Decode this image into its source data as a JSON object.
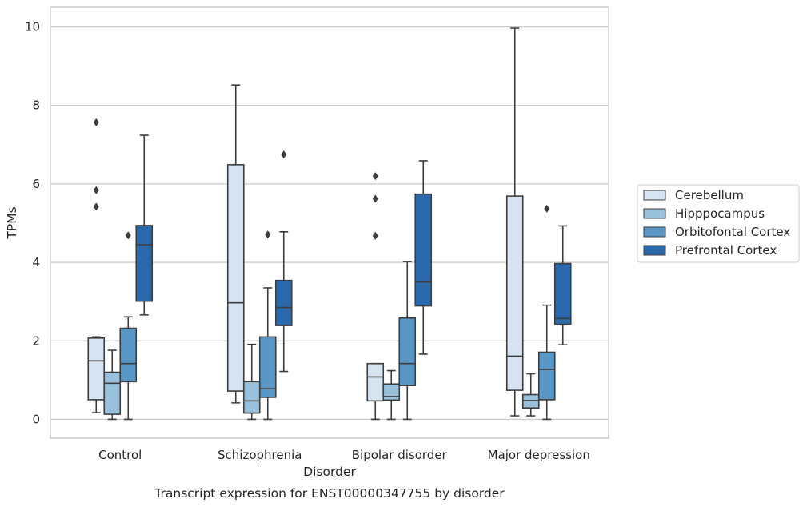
{
  "chart_data": {
    "type": "box",
    "title": "Transcript expression for ENST00000347755 by disorder",
    "xlabel": "Disorder",
    "ylabel": "TPMs",
    "ylim": [
      -0.48,
      10.5
    ],
    "yticks": [
      0,
      2,
      4,
      6,
      8,
      10
    ],
    "grid": "horizontal",
    "legend_position": "right",
    "categories": [
      "Control",
      "Schizophrenia",
      "Bipolar disorder",
      "Major depression"
    ],
    "series": [
      {
        "name": "Cerebellum",
        "color": "#d6e3f1",
        "boxes": [
          {
            "whisker_low": 0.17,
            "q1": 0.5,
            "median": 1.49,
            "q3": 2.07,
            "whisker_high": 2.1,
            "outliers": [
              7.57,
              5.84,
              5.42
            ]
          },
          {
            "whisker_low": 0.42,
            "q1": 0.72,
            "median": 2.97,
            "q3": 6.49,
            "whisker_high": 8.52,
            "outliers": []
          },
          {
            "whisker_low": 0.0,
            "q1": 0.47,
            "median": 1.08,
            "q3": 1.42,
            "whisker_high": 1.42,
            "outliers": [
              6.2,
              5.62,
              4.68
            ]
          },
          {
            "whisker_low": 0.09,
            "q1": 0.74,
            "median": 1.61,
            "q3": 5.69,
            "whisker_high": 9.97,
            "outliers": []
          }
        ]
      },
      {
        "name": "Hipppocampus",
        "color": "#9ac1db",
        "boxes": [
          {
            "whisker_low": 0.0,
            "q1": 0.13,
            "median": 0.92,
            "q3": 1.2,
            "whisker_high": 1.76,
            "outliers": []
          },
          {
            "whisker_low": 0.0,
            "q1": 0.16,
            "median": 0.47,
            "q3": 0.96,
            "whisker_high": 1.91,
            "outliers": []
          },
          {
            "whisker_low": 0.0,
            "q1": 0.49,
            "median": 0.58,
            "q3": 0.9,
            "whisker_high": 1.24,
            "outliers": []
          },
          {
            "whisker_low": 0.09,
            "q1": 0.29,
            "median": 0.48,
            "q3": 0.63,
            "whisker_high": 1.16,
            "outliers": []
          }
        ]
      },
      {
        "name": "Orbitofontal Cortex",
        "color": "#5897c6",
        "boxes": [
          {
            "whisker_low": 0.0,
            "q1": 0.96,
            "median": 1.42,
            "q3": 2.32,
            "whisker_high": 2.61,
            "outliers": [
              4.69
            ]
          },
          {
            "whisker_low": 0.0,
            "q1": 0.56,
            "median": 0.78,
            "q3": 2.1,
            "whisker_high": 3.35,
            "outliers": [
              4.71
            ]
          },
          {
            "whisker_low": 0.0,
            "q1": 0.86,
            "median": 1.42,
            "q3": 2.58,
            "whisker_high": 4.02,
            "outliers": []
          },
          {
            "whisker_low": 0.0,
            "q1": 0.5,
            "median": 1.27,
            "q3": 1.71,
            "whisker_high": 2.91,
            "outliers": [
              5.37
            ]
          }
        ]
      },
      {
        "name": "Prefrontal Cortex",
        "color": "#2a6aac",
        "boxes": [
          {
            "whisker_low": 2.66,
            "q1": 3.01,
            "median": 4.45,
            "q3": 4.94,
            "whisker_high": 7.24,
            "outliers": []
          },
          {
            "whisker_low": 1.22,
            "q1": 2.39,
            "median": 2.85,
            "q3": 3.54,
            "whisker_high": 4.78,
            "outliers": [
              6.75
            ]
          },
          {
            "whisker_low": 1.66,
            "q1": 2.89,
            "median": 3.5,
            "q3": 5.74,
            "whisker_high": 6.59,
            "outliers": []
          },
          {
            "whisker_low": 1.9,
            "q1": 2.42,
            "median": 2.57,
            "q3": 3.97,
            "whisker_high": 4.93,
            "outliers": []
          }
        ]
      }
    ]
  }
}
